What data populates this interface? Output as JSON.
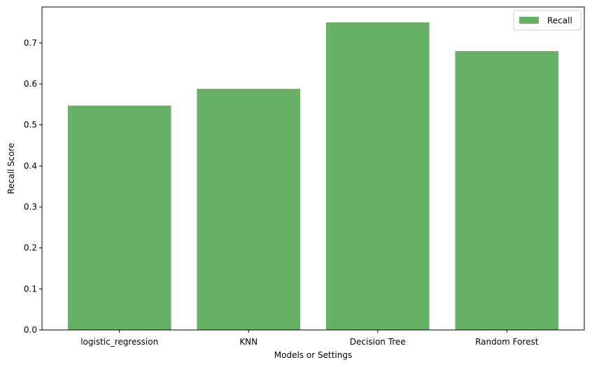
{
  "chart_data": {
    "type": "bar",
    "categories": [
      "logistic_regression",
      "KNN",
      "Decision Tree",
      "Random Forest"
    ],
    "series": [
      {
        "name": "Recall",
        "values": [
          0.547,
          0.588,
          0.75,
          0.68
        ],
        "color": "#67b167"
      }
    ],
    "xlabel": "Models or Settings",
    "ylabel": "Recall Score",
    "ylim": [
      0,
      0.7875
    ],
    "yticks": [
      "0.0",
      "0.1",
      "0.2",
      "0.3",
      "0.4",
      "0.5",
      "0.6",
      "0.7"
    ],
    "grid": false,
    "legend_position": "top-right"
  }
}
